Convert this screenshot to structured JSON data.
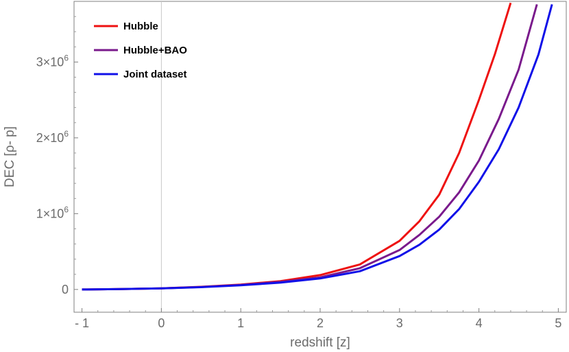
{
  "chart_data": {
    "type": "line",
    "xlabel": "redshift [z]",
    "ylabel": "DEC [ρ- p]",
    "xlim": [
      -1.1,
      5.1
    ],
    "ylim": [
      -300000,
      3800000
    ],
    "x_ticks": [
      {
        "value": -1,
        "label": "- 1"
      },
      {
        "value": 0,
        "label": "0"
      },
      {
        "value": 1,
        "label": "1"
      },
      {
        "value": 2,
        "label": "2"
      },
      {
        "value": 3,
        "label": "3"
      },
      {
        "value": 4,
        "label": "4"
      },
      {
        "value": 5,
        "label": "5"
      }
    ],
    "y_ticks": [
      {
        "value": 0,
        "mantissa": "0",
        "exp": ""
      },
      {
        "value": 1000000,
        "mantissa": "1×10",
        "exp": "6"
      },
      {
        "value": 2000000,
        "mantissa": "2×10",
        "exp": "6"
      },
      {
        "value": 3000000,
        "mantissa": "3×10",
        "exp": "6"
      }
    ],
    "grid": false,
    "legend_position": "top-left",
    "series": [
      {
        "name": "Hubble",
        "color": "#ee1111",
        "x": [
          -1,
          -0.5,
          0,
          0.5,
          1,
          1.5,
          2,
          2.5,
          3,
          3.25,
          3.5,
          3.75,
          4,
          4.2,
          4.4
        ],
        "y": [
          0,
          5000,
          15000,
          35000,
          65000,
          110000,
          190000,
          330000,
          640000,
          900000,
          1250000,
          1800000,
          2500000,
          3100000,
          3780000
        ]
      },
      {
        "name": "Hubble+BAO",
        "color": "#7a1a8c",
        "x": [
          -1,
          -0.5,
          0,
          0.5,
          1,
          1.5,
          2,
          2.5,
          3,
          3.25,
          3.5,
          3.75,
          4,
          4.25,
          4.5,
          4.73
        ],
        "y": [
          0,
          5000,
          15000,
          32000,
          60000,
          100000,
          160000,
          280000,
          520000,
          720000,
          960000,
          1280000,
          1700000,
          2250000,
          2900000,
          3760000
        ]
      },
      {
        "name": "Joint dataset",
        "color": "#1010e8",
        "x": [
          -1,
          -0.5,
          0,
          0.5,
          1,
          1.5,
          2,
          2.5,
          3,
          3.25,
          3.5,
          3.75,
          4,
          4.25,
          4.5,
          4.75,
          4.92
        ],
        "y": [
          0,
          5000,
          14000,
          30000,
          55000,
          90000,
          145000,
          240000,
          440000,
          590000,
          790000,
          1060000,
          1420000,
          1850000,
          2400000,
          3100000,
          3760000
        ]
      }
    ]
  }
}
